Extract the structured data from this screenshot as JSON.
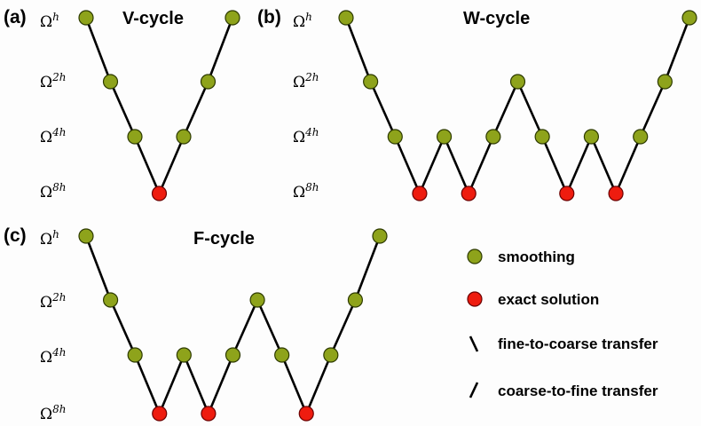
{
  "panels": [
    {
      "tag": "(a)",
      "title": "V-cycle"
    },
    {
      "tag": "(b)",
      "title": "W-cycle"
    },
    {
      "tag": "(c)",
      "title": "F-cycle"
    }
  ],
  "levels": [
    {
      "base": "Ω",
      "sup": "h"
    },
    {
      "base": "Ω",
      "sup": "2h"
    },
    {
      "base": "Ω",
      "sup": "4h"
    },
    {
      "base": "Ω",
      "sup": "8h"
    }
  ],
  "legend": {
    "smoothing": "smoothing",
    "exact": "exact solution",
    "fine_to_coarse": "fine-to-coarse transfer",
    "coarse_to_fine": "coarse-to-fine transfer"
  },
  "colors": {
    "smoothing": "#8ea31b",
    "exact": "#ee1c0f"
  },
  "cycles": {
    "V": [
      0,
      1,
      2,
      3,
      2,
      1,
      0
    ],
    "W": [
      0,
      1,
      2,
      3,
      2,
      3,
      2,
      1,
      2,
      3,
      2,
      3,
      2,
      1,
      0
    ],
    "F": [
      0,
      1,
      2,
      3,
      2,
      3,
      2,
      1,
      2,
      3,
      2,
      1,
      0
    ]
  }
}
